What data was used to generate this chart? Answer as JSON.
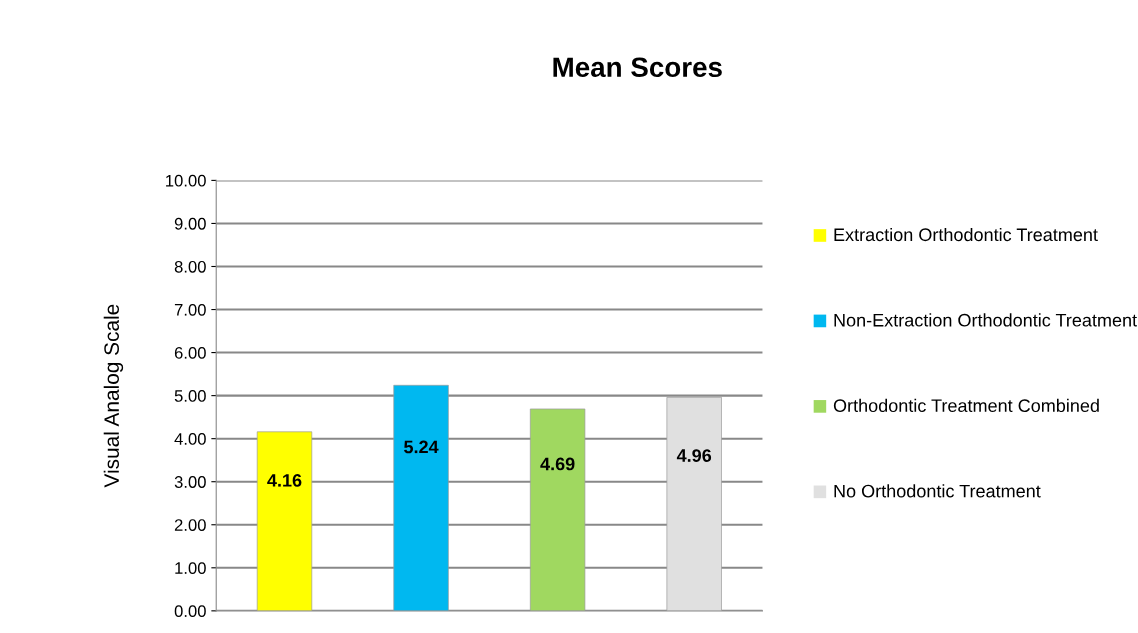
{
  "chart_data": {
    "type": "bar",
    "title": "Mean Scores",
    "ylabel": "Visual Analog Scale",
    "categories": [
      null
    ],
    "series": [
      {
        "name": "Extraction Orthodontic Treatment",
        "color": "#ffff00",
        "values": [
          4.16
        ]
      },
      {
        "name": "Non-Extraction Orthodontic Treatment",
        "color": "#00b8f0",
        "values": [
          5.24
        ]
      },
      {
        "name": "Orthodontic Treatment Combined",
        "color": "#a0d860",
        "values": [
          4.69
        ]
      },
      {
        "name": "No Orthodontic Treatment",
        "color": "#e0e0e0",
        "values": [
          4.96
        ]
      }
    ],
    "ylim": [
      0,
      10
    ],
    "yticks": [
      {
        "value": 0,
        "label": "0.00"
      },
      {
        "value": 1,
        "label": "1.00"
      },
      {
        "value": 2,
        "label": "2.00"
      },
      {
        "value": 3,
        "label": "3.00"
      },
      {
        "value": 4,
        "label": "4.00"
      },
      {
        "value": 5,
        "label": "5.00"
      },
      {
        "value": 6,
        "label": "6.00"
      },
      {
        "value": 7,
        "label": "7.00"
      },
      {
        "value": 8,
        "label": "8.00"
      },
      {
        "value": 9,
        "label": "9.00"
      },
      {
        "value": 10,
        "label": "10.00"
      }
    ],
    "grid": "y",
    "legend": "right",
    "data_labels": true
  }
}
